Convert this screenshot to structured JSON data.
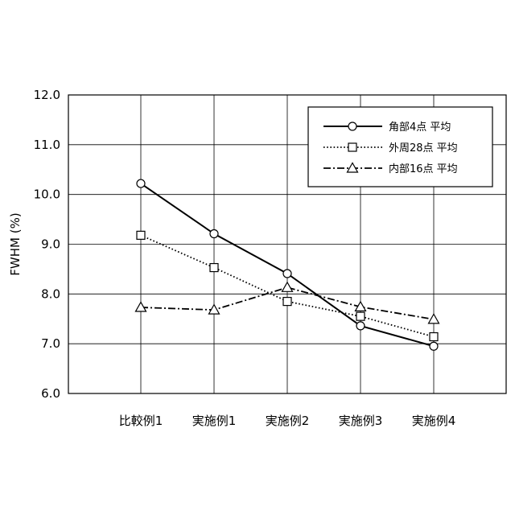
{
  "chart_data": {
    "type": "line",
    "title": "",
    "xlabel": "",
    "ylabel": "FWHM (%)",
    "categories": [
      "比較例1",
      "実施例1",
      "実施例2",
      "実施例3",
      "実施例4"
    ],
    "ylim": [
      6.0,
      12.0
    ],
    "yticks": [
      6.0,
      7.0,
      8.0,
      9.0,
      10.0,
      11.0,
      12.0
    ],
    "ytick_labels": [
      "6.0",
      "7.0",
      "8.0",
      "9.0",
      "10.0",
      "11.0",
      "12.0"
    ],
    "grid": true,
    "legend_position": "top-right",
    "series": [
      {
        "name": "角部4点 平均",
        "values": [
          10.22,
          9.21,
          8.41,
          7.36,
          6.95
        ],
        "marker": "circle",
        "line_style": "solid",
        "color": "#000000"
      },
      {
        "name": "外周28点 平均",
        "values": [
          9.18,
          8.53,
          7.85,
          7.55,
          7.14
        ],
        "marker": "square",
        "line_style": "dotted",
        "color": "#000000"
      },
      {
        "name": "内部16点 平均",
        "values": [
          7.73,
          7.68,
          8.13,
          7.74,
          7.49
        ],
        "marker": "triangle",
        "line_style": "dashdot",
        "color": "#000000"
      }
    ]
  }
}
